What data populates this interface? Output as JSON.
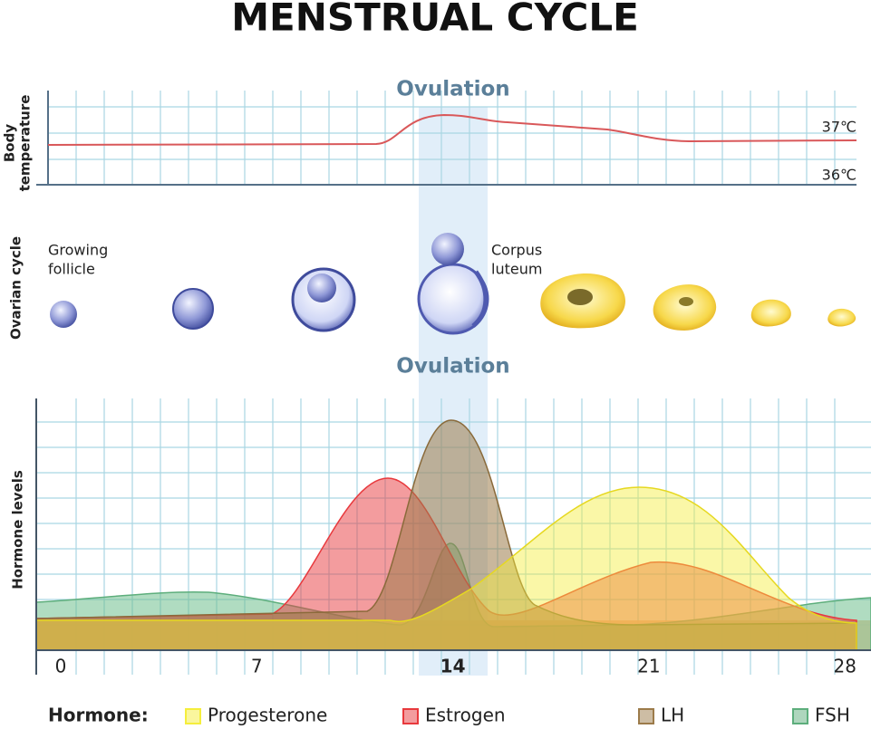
{
  "title": "MENSTRUAL CYCLE",
  "ovulation_labels": [
    "Ovulation",
    "Ovulation"
  ],
  "temperature": {
    "label_lines": [
      "Body",
      "temperature"
    ],
    "ticks": [
      "37℃",
      "36℃"
    ]
  },
  "ovarian": {
    "label": "Ovarian cycle",
    "growing_follicle": [
      "Growing",
      "follicle"
    ],
    "corpus_luteum": [
      "Corpus",
      "luteum"
    ]
  },
  "hormones": {
    "label": "Hormone levels",
    "days": [
      0,
      7,
      14,
      21,
      28
    ]
  },
  "legend": {
    "title": "Hormone:",
    "items": [
      {
        "name": "Progesterone",
        "color": "#f5ee3c"
      },
      {
        "name": "Estrogen",
        "color": "#e8393d"
      },
      {
        "name": "LH",
        "color": "#9c7b4a"
      },
      {
        "name": "FSH",
        "color": "#5dae7c"
      }
    ]
  }
}
